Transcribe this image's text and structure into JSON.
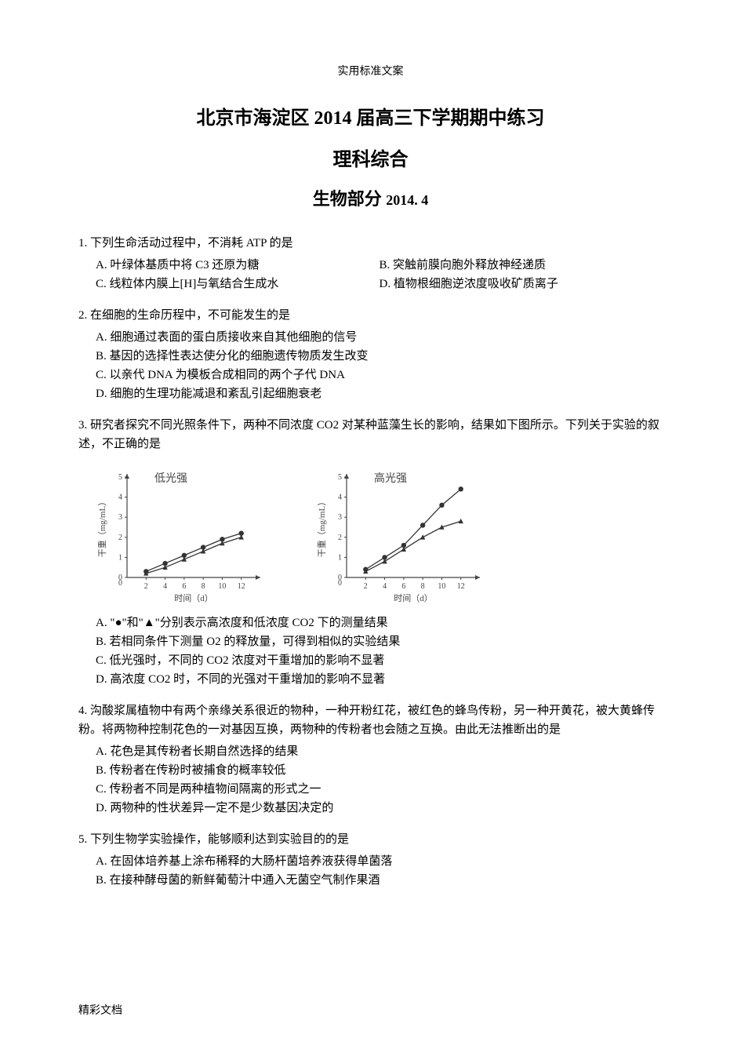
{
  "header_small": "实用标准文案",
  "title_main": "北京市海淀区 2014 届高三下学期期中练习",
  "title_sub": "理科综合",
  "title_section": "生物部分",
  "title_date": "2014. 4",
  "q1": {
    "stem": "1. 下列生命活动过程中，不消耗 ATP 的是",
    "a": "A. 叶绿体基质中将 C3 还原为糖",
    "b": "B. 突触前膜向胞外释放神经递质",
    "c": "C. 线粒体内膜上[H]与氧结合生成水",
    "d": "D. 植物根细胞逆浓度吸收矿质离子"
  },
  "q2": {
    "stem": "2. 在细胞的生命历程中，不可能发生的是",
    "a": "A. 细胞通过表面的蛋白质接收来自其他细胞的信号",
    "b": "B. 基因的选择性表达使分化的细胞遗传物质发生改变",
    "c": "C. 以亲代 DNA 为模板合成相同的两个子代 DNA",
    "d": "D. 细胞的生理功能减退和紊乱引起细胞衰老"
  },
  "q3": {
    "stem": "3. 研究者探究不同光照条件下，两种不同浓度 CO2 对某种蓝藻生长的影响，结果如下图所示。下列关于实验的叙述，不正确的是",
    "a": "A. \"●\"和\"▲\"分别表示高浓度和低浓度 CO2 下的测量结果",
    "b": "B. 若相同条件下测量 O2 的释放量，可得到相似的实验结果",
    "c": "C. 低光强时，不同的 CO2 浓度对干重增加的影响不显著",
    "d": "D. 高浓度 CO2 时，不同的光强对干重增加的影响不显著"
  },
  "q4": {
    "stem": "4. 沟酸浆属植物中有两个亲缘关系很近的物种，一种开粉红花，被红色的蜂鸟传粉，另一种开黄花，被大黄蜂传粉。将两物种控制花色的一对基因互换，两物种的传粉者也会随之互换。由此无法推断出的是",
    "a": "A. 花色是其传粉者长期自然选择的结果",
    "b": "B. 传粉者在传粉时被捕食的概率较低",
    "c": "C. 传粉者不同是两种植物间隔离的形式之一",
    "d": "D. 两物种的性状差异一定不是少数基因决定的"
  },
  "q5": {
    "stem": "5. 下列生物学实验操作，能够顺利达到实验目的的是",
    "a": "A. 在固体培养基上涂布稀释的大肠杆菌培养液获得单菌落",
    "b": "B. 在接种酵母菌的新鲜葡萄汁中通入无菌空气制作果酒"
  },
  "footer": "精彩文档",
  "chart1": {
    "title": "低光强",
    "ylabel": "干重（mg/mL）",
    "xlabel": "时间（d）",
    "ylim": [
      0,
      5
    ],
    "ytick_step": 1,
    "xlim": [
      0,
      14
    ],
    "xticks": [
      2,
      4,
      6,
      8,
      10,
      12
    ],
    "series1_x": [
      2,
      4,
      6,
      8,
      10,
      12
    ],
    "series1_y": [
      0.3,
      0.7,
      1.1,
      1.5,
      1.9,
      2.2
    ],
    "series1_marker": "circle",
    "series2_x": [
      2,
      4,
      6,
      8,
      10,
      12
    ],
    "series2_y": [
      0.2,
      0.5,
      0.9,
      1.3,
      1.7,
      2.0
    ],
    "series2_marker": "triangle",
    "line_color": "#333333",
    "axis_color": "#444444",
    "text_color": "#444444",
    "title_fontsize": 14,
    "label_fontsize": 11,
    "tick_fontsize": 10
  },
  "chart2": {
    "title": "高光强",
    "ylabel": "干重（mg/mL）",
    "xlabel": "时间（d）",
    "ylim": [
      0,
      5
    ],
    "ytick_step": 1,
    "xlim": [
      0,
      14
    ],
    "xticks": [
      2,
      4,
      6,
      8,
      10,
      12
    ],
    "series1_x": [
      2,
      4,
      6,
      8,
      10,
      12
    ],
    "series1_y": [
      0.4,
      1.0,
      1.6,
      2.6,
      3.6,
      4.4
    ],
    "series1_marker": "circle",
    "series2_x": [
      2,
      4,
      6,
      8,
      10,
      12
    ],
    "series2_y": [
      0.3,
      0.8,
      1.4,
      2.0,
      2.5,
      2.8
    ],
    "series2_marker": "triangle",
    "line_color": "#333333",
    "axis_color": "#444444",
    "text_color": "#444444",
    "title_fontsize": 14,
    "label_fontsize": 11,
    "tick_fontsize": 10
  }
}
